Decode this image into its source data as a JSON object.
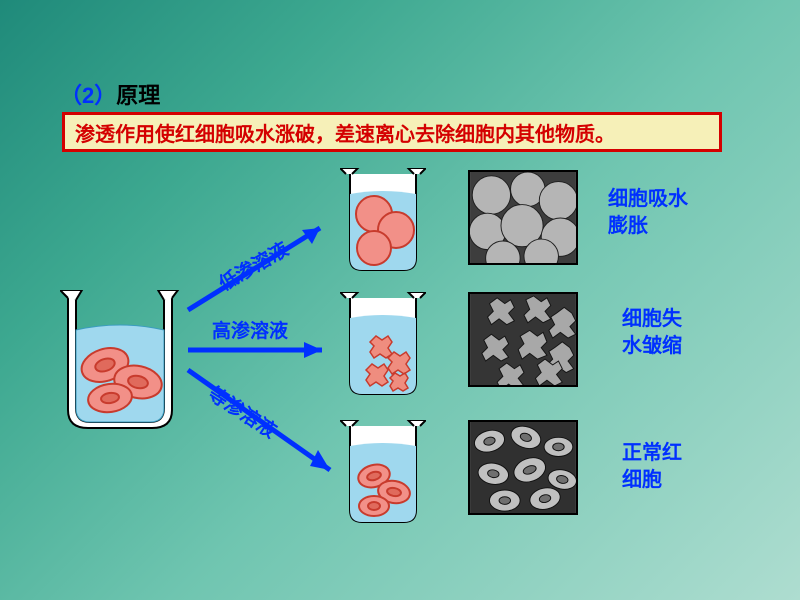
{
  "background_gradient": [
    "#1f8a7a",
    "#3da890",
    "#6fc5b0",
    "#aeddd0"
  ],
  "heading": {
    "number": "（2）",
    "text": "原理",
    "number_color": "#0030ff",
    "text_color": "#000000",
    "fontsize": 22
  },
  "principle": {
    "text": "渗透作用使红细胞吸水涨破，差速离心去除细胞内其他物质。",
    "border_color": "#d40000",
    "bg_color": "#f6f0b8",
    "text_color": "#d40000",
    "fontsize": 20
  },
  "arrows": {
    "color": "#0030ff",
    "stroke_width": 5,
    "labels": {
      "hypo": "低渗溶液",
      "hyper": "高渗溶液",
      "iso": "等渗溶液"
    },
    "label_fontsize": 19
  },
  "results": {
    "hypo": "细胞吸水\n膨胀",
    "hyper": "细胞失\n水皱缩",
    "iso": "正常红\n细胞",
    "color": "#0030ff",
    "fontsize": 20
  },
  "beaker": {
    "outline": "#000000",
    "glass_fill": "#ffffff",
    "water_fill": "#9fd8ee",
    "cell_fill": "#f29088",
    "cell_stroke": "#c83b2d",
    "crenated_fill": "#ef8d7f"
  },
  "micro": {
    "border": "#000000",
    "bg": "#4a4a4a",
    "cell_light": "#bcbcbc",
    "cell_dark": "#2a2a2a"
  }
}
